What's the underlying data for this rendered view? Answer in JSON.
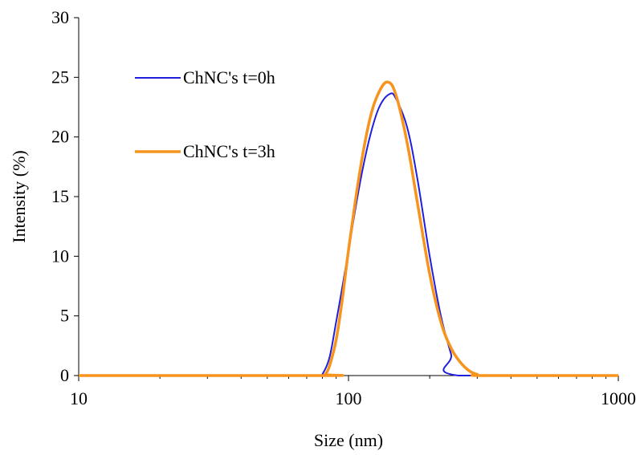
{
  "chart_data": {
    "type": "line",
    "title": "",
    "xlabel": "Size (nm)",
    "ylabel": "Intensity (%)",
    "x_scale": "log",
    "xlim": [
      10,
      1000
    ],
    "ylim": [
      0,
      30
    ],
    "x_ticks": [
      10,
      100,
      1000
    ],
    "y_ticks": [
      0,
      5,
      10,
      15,
      20,
      25,
      30
    ],
    "grid": false,
    "legend_position": "top-left",
    "series": [
      {
        "name": "ChNC's t=0h",
        "color": "#1f1fdd",
        "x": [
          10,
          78,
          80,
          85,
          90,
          95,
          100,
          110,
          120,
          130,
          142,
          150,
          165,
          180,
          200,
          220,
          240,
          255,
          1000
        ],
        "y": [
          0,
          0,
          0.1,
          1.5,
          4.5,
          7.5,
          10.5,
          16.0,
          20.0,
          22.5,
          23.6,
          23.2,
          20.8,
          16.5,
          10.0,
          5.0,
          1.8,
          0,
          0
        ]
      },
      {
        "name": "ChNC's t=3h",
        "color": "#f7941d",
        "x": [
          10,
          80,
          82,
          85,
          90,
          95,
          100,
          110,
          120,
          130,
          140,
          150,
          165,
          180,
          200,
          220,
          240,
          260,
          280,
          300,
          320,
          1000
        ],
        "y": [
          0,
          0,
          0.1,
          0.8,
          3.0,
          6.5,
          10.5,
          17.0,
          21.5,
          23.8,
          24.6,
          23.5,
          19.5,
          14.5,
          8.5,
          4.5,
          2.3,
          1.1,
          0.4,
          0.1,
          0,
          0
        ]
      }
    ]
  }
}
